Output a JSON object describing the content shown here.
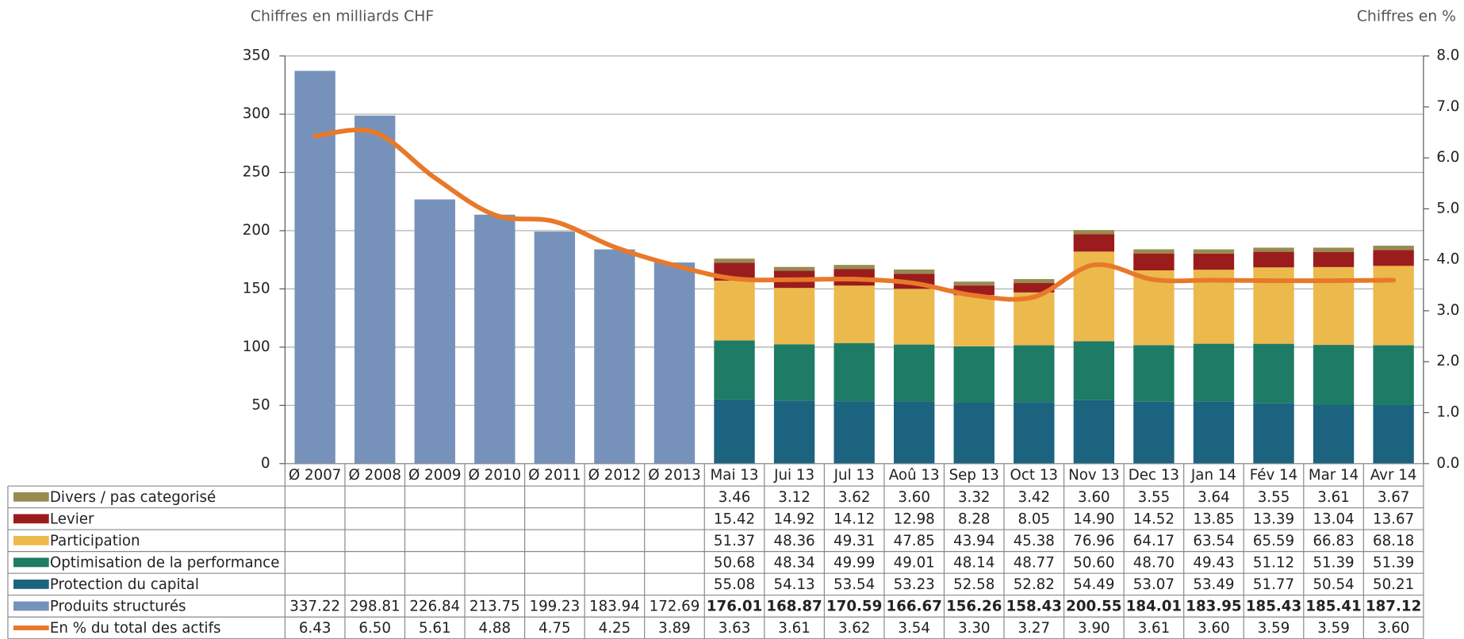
{
  "chart_data": {
    "type": "stacked-bar-line",
    "left_axis_label": "Chiffres en milliards CHF",
    "right_axis_label": "Chiffres en %",
    "categories": [
      "Ø 2007",
      "Ø 2008",
      "Ø 2009",
      "Ø 2010",
      "Ø 2011",
      "Ø 2012",
      "Ø 2013",
      "Mai 13",
      "Jui 13",
      "Jul 13",
      "Aoû 13",
      "Sep 13",
      "Oct 13",
      "Nov 13",
      "Dec 13",
      "Jan 14",
      "Fév 14",
      "Mar 14",
      "Avr 14"
    ],
    "ylim": [
      0,
      350
    ],
    "yticks": [
      0,
      50,
      100,
      150,
      200,
      250,
      300,
      350
    ],
    "y2lim": [
      0,
      8
    ],
    "y2ticks": [
      {
        "value": 0,
        "label": "0.0"
      },
      {
        "value": 1,
        "label": "1.0"
      },
      {
        "value": 2,
        "label": "2.0"
      },
      {
        "value": 3,
        "label": "3.0"
      },
      {
        "value": 4,
        "label": "4.0"
      },
      {
        "value": 5,
        "label": "5.0"
      },
      {
        "value": 6,
        "label": "6.0"
      },
      {
        "value": 7,
        "label": "7.0"
      },
      {
        "value": 8,
        "label": "8.0"
      }
    ],
    "grid": true,
    "series": [
      {
        "name": "Divers / pas categorisé",
        "color": "#978b50",
        "kind": "segment",
        "values": [
          null,
          null,
          null,
          null,
          null,
          null,
          null,
          3.46,
          3.12,
          3.62,
          3.6,
          3.32,
          3.42,
          3.6,
          3.55,
          3.64,
          3.55,
          3.61,
          3.67
        ],
        "value_labels": [
          null,
          null,
          null,
          null,
          null,
          null,
          null,
          "3.46",
          "3.12",
          "3.62",
          "3.60",
          "3.32",
          "3.42",
          "3.60",
          "3.55",
          "3.64",
          "3.55",
          "3.61",
          "3.67"
        ]
      },
      {
        "name": "Levier",
        "color": "#9b1c1c",
        "kind": "segment",
        "values": [
          null,
          null,
          null,
          null,
          null,
          null,
          null,
          15.42,
          14.92,
          14.12,
          12.98,
          8.28,
          8.05,
          14.9,
          14.52,
          13.85,
          13.39,
          13.04,
          13.67
        ],
        "value_labels": [
          null,
          null,
          null,
          null,
          null,
          null,
          null,
          "15.42",
          "14.92",
          "14.12",
          "12.98",
          "8.28",
          "8.05",
          "14.90",
          "14.52",
          "13.85",
          "13.39",
          "13.04",
          "13.67"
        ]
      },
      {
        "name": "Participation",
        "color": "#ecb94c",
        "kind": "segment",
        "values": [
          null,
          null,
          null,
          null,
          null,
          null,
          null,
          51.37,
          48.36,
          49.31,
          47.85,
          43.94,
          45.38,
          76.96,
          64.17,
          63.54,
          65.59,
          66.83,
          68.18
        ],
        "value_labels": [
          null,
          null,
          null,
          null,
          null,
          null,
          null,
          "51.37",
          "48.36",
          "49.31",
          "47.85",
          "43.94",
          "45.38",
          "76.96",
          "64.17",
          "63.54",
          "65.59",
          "66.83",
          "68.18"
        ]
      },
      {
        "name": "Optimisation de la performance",
        "color": "#1e7b65",
        "kind": "segment",
        "values": [
          null,
          null,
          null,
          null,
          null,
          null,
          null,
          50.68,
          48.34,
          49.99,
          49.01,
          48.14,
          48.77,
          50.6,
          48.7,
          49.43,
          51.12,
          51.39,
          51.39
        ],
        "value_labels": [
          null,
          null,
          null,
          null,
          null,
          null,
          null,
          "50.68",
          "48.34",
          "49.99",
          "49.01",
          "48.14",
          "48.77",
          "50.60",
          "48.70",
          "49.43",
          "51.12",
          "51.39",
          "51.39"
        ]
      },
      {
        "name": "Protection du capital",
        "color": "#1b637f",
        "kind": "segment",
        "values": [
          null,
          null,
          null,
          null,
          null,
          null,
          null,
          55.08,
          54.13,
          53.54,
          53.23,
          52.58,
          52.82,
          54.49,
          53.07,
          53.49,
          51.77,
          50.54,
          50.21
        ],
        "value_labels": [
          null,
          null,
          null,
          null,
          null,
          null,
          null,
          "55.08",
          "54.13",
          "53.54",
          "53.23",
          "52.58",
          "52.82",
          "54.49",
          "53.07",
          "53.49",
          "51.77",
          "50.54",
          "50.21"
        ]
      },
      {
        "name": "Produits structurés",
        "color": "#7692ba",
        "kind": "total",
        "values": [
          337.22,
          298.81,
          226.84,
          213.75,
          199.23,
          183.94,
          172.69,
          176.01,
          168.87,
          170.59,
          166.67,
          156.26,
          158.43,
          200.55,
          184.01,
          183.95,
          185.43,
          185.41,
          187.12
        ],
        "value_labels": [
          "337.22",
          "298.81",
          "226.84",
          "213.75",
          "199.23",
          "183.94",
          "172.69",
          "176.01",
          "168.87",
          "170.59",
          "166.67",
          "156.26",
          "158.43",
          "200.55",
          "184.01",
          "183.95",
          "185.43",
          "185.41",
          "187.12"
        ]
      },
      {
        "name": "En % du total des actifs",
        "color": "#e8792a",
        "kind": "line",
        "axis": "y2",
        "values": [
          6.43,
          6.5,
          5.61,
          4.88,
          4.75,
          4.25,
          3.89,
          3.63,
          3.61,
          3.62,
          3.54,
          3.3,
          3.27,
          3.9,
          3.61,
          3.6,
          3.59,
          3.59,
          3.6
        ],
        "value_labels": [
          "6.43",
          "6.50",
          "5.61",
          "4.88",
          "4.75",
          "4.25",
          "3.89",
          "3.63",
          "3.61",
          "3.62",
          "3.54",
          "3.30",
          "3.27",
          "3.90",
          "3.61",
          "3.60",
          "3.59",
          "3.59",
          "3.60"
        ]
      }
    ]
  }
}
